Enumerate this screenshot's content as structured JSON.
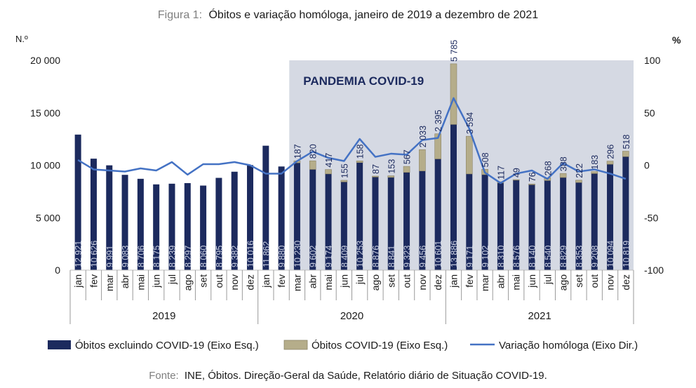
{
  "figure": {
    "label": "Figura 1:",
    "caption": "Óbitos e variação homóloga, janeiro de 2019 a dezembro de 2021",
    "source_label": "Fonte:",
    "source_text": "INE, Óbitos. Direção-Geral da Saúde, Relatório diário de Situação COVID-19."
  },
  "chart_data": {
    "type": "bar",
    "stacked": true,
    "y_left_label": "N.º",
    "y_right_label": "%",
    "y_left_range": [
      0,
      20000
    ],
    "y_left_ticks": [
      "0",
      "5 000",
      "10 000",
      "15 000",
      "20 000"
    ],
    "y_left_tick_values": [
      0,
      5000,
      10000,
      15000,
      20000
    ],
    "y_right_range": [
      -100,
      100
    ],
    "y_right_ticks": [
      "-100",
      "-50",
      "0",
      "50",
      "100"
    ],
    "y_right_tick_values": [
      -100,
      -50,
      0,
      50,
      100
    ],
    "months": [
      "jan",
      "fev",
      "mar",
      "abr",
      "mai",
      "jun",
      "jul",
      "ago",
      "set",
      "out",
      "nov",
      "dez",
      "jan",
      "fev",
      "mar",
      "abr",
      "mai",
      "jun",
      "jul",
      "ago",
      "set",
      "out",
      "nov",
      "dez",
      "jan",
      "fev",
      "mar",
      "abr",
      "mai",
      "jun",
      "jul",
      "ago",
      "set",
      "out",
      "nov",
      "dez"
    ],
    "years": [
      {
        "label": "2019",
        "start": 0,
        "end": 12
      },
      {
        "label": "2020",
        "start": 12,
        "end": 24
      },
      {
        "label": "2021",
        "start": 24,
        "end": 36
      }
    ],
    "shaded_region": {
      "label": "PANDEMIA COVID-19",
      "start_index": 14,
      "end_index": 35
    },
    "series": [
      {
        "name": "Óbitos excluindo COVID-19 (Eixo Esq.)",
        "color": "#1c2a5e",
        "values": [
          12921,
          10626,
          9991,
          9083,
          8706,
          8175,
          8239,
          8297,
          8060,
          8795,
          9382,
          10016,
          11862,
          9880,
          10230,
          9602,
          9174,
          8409,
          10253,
          8876,
          8841,
          9323,
          9456,
          10601,
          13886,
          9171,
          9102,
          8310,
          8576,
          8140,
          8540,
          8829,
          8353,
          9208,
          10094,
          10819
        ],
        "labels": [
          "12 921",
          "10 626",
          "9 991",
          "9 083",
          "8 706",
          "8 175",
          "8 239",
          "8 297",
          "8 060",
          "8 795",
          "9 382",
          "10 016",
          "11 862",
          "9 880",
          "10 230",
          "9 602",
          "9 174",
          "8 409",
          "10 253",
          "8 876",
          "8 841",
          "9 323",
          "9 456",
          "10 601",
          "13 886",
          "9 171",
          "9 102",
          "8 310",
          "8 576",
          "8 140",
          "8 540",
          "8 829",
          "8 353",
          "9 208",
          "10 094",
          "10 819"
        ]
      },
      {
        "name": "Óbitos COVID-19 (Eixo Esq.)",
        "color": "#b5ad8a",
        "values": [
          0,
          0,
          0,
          0,
          0,
          0,
          0,
          0,
          0,
          0,
          0,
          0,
          0,
          0,
          187,
          820,
          417,
          155,
          158,
          87,
          153,
          567,
          2033,
          2395,
          5785,
          3594,
          508,
          117,
          49,
          76,
          268,
          388,
          222,
          183,
          296,
          518
        ],
        "labels": [
          "",
          "",
          "",
          "",
          "",
          "",
          "",
          "",
          "",
          "",
          "",
          "",
          "",
          "",
          "187",
          "820",
          "417",
          "155",
          "158",
          "87",
          "153",
          "567",
          "2 033",
          "2 395",
          "5 785",
          "3 594",
          "508",
          "117",
          "49",
          "76",
          "268",
          "388",
          "222",
          "183",
          "296",
          "518"
        ]
      },
      {
        "name": "Variação homóloga (Eixo Dir.)",
        "color": "#4472c4",
        "type": "line",
        "axis": "right",
        "values": [
          5,
          -4,
          -5,
          -6,
          -3,
          -5,
          3,
          -9,
          1,
          1,
          3,
          0,
          -8,
          -8,
          4,
          13,
          7,
          4,
          25,
          8,
          11,
          10,
          24,
          26,
          64,
          35,
          -7,
          -17,
          -8,
          -5,
          -13,
          2,
          -6,
          -4,
          -8,
          -13
        ]
      }
    ]
  }
}
